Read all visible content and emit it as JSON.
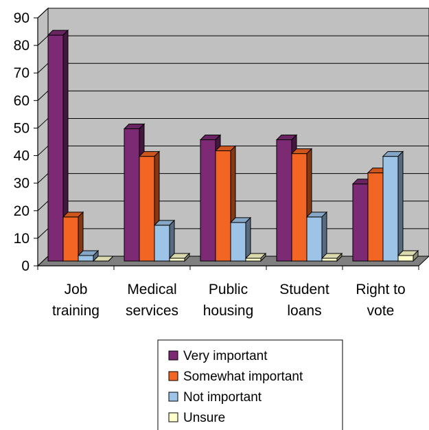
{
  "chart_data": {
    "type": "bar",
    "title": "",
    "xlabel": "",
    "ylabel": "",
    "ylim": [
      0,
      90
    ],
    "yticks": [
      0,
      10,
      20,
      30,
      40,
      50,
      60,
      70,
      80,
      90
    ],
    "grid": true,
    "legend_position": "bottom",
    "categories": [
      [
        "Job",
        "training"
      ],
      [
        "Medical",
        "services"
      ],
      [
        "Public",
        "housing"
      ],
      [
        "Student",
        "loans"
      ],
      [
        "Right to",
        "vote"
      ]
    ],
    "series": [
      {
        "name": "Very important",
        "color": "#7b2a73",
        "values": [
          82,
          48,
          44,
          44,
          28
        ]
      },
      {
        "name": "Somewhat important",
        "color": "#f26522",
        "values": [
          16,
          38,
          40,
          39,
          32
        ]
      },
      {
        "name": "Not important",
        "color": "#9dc3e6",
        "values": [
          2,
          13,
          14,
          16,
          38
        ]
      },
      {
        "name": "Unsure",
        "color": "#ffffcc",
        "values": [
          0,
          1,
          1,
          1,
          2
        ]
      }
    ]
  }
}
